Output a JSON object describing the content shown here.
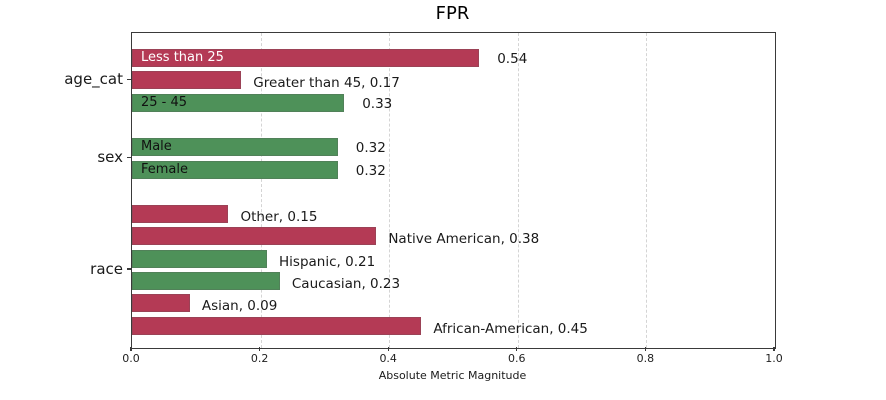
{
  "chart_data": {
    "type": "bar",
    "orientation": "horizontal",
    "title": "FPR",
    "xlabel": "Absolute Metric Magnitude",
    "xlim": [
      0.0,
      1.0
    ],
    "xticks": [
      0.0,
      0.2,
      0.4,
      0.6,
      0.8,
      1.0
    ],
    "grid": "vertical-dashed",
    "legend": "none",
    "colors": {
      "crimson": "#b43a55",
      "green": "#4e9159",
      "grid": "#d4d4d4",
      "spine": "#3a3a3a",
      "inside_label_on_crimson": "#ffffff",
      "inside_label_on_green": "#111111"
    },
    "groups": [
      {
        "label": "age_cat",
        "bars": [
          {
            "label": "Less than 25",
            "value": 0.54,
            "color": "crimson",
            "label_position": "inside"
          },
          {
            "label": "Greater than 45",
            "value": 0.17,
            "color": "crimson",
            "label_position": "outside"
          },
          {
            "label": "25 - 45",
            "value": 0.33,
            "color": "green",
            "label_position": "inside"
          }
        ]
      },
      {
        "label": "sex",
        "bars": [
          {
            "label": "Male",
            "value": 0.32,
            "color": "green",
            "label_position": "inside"
          },
          {
            "label": "Female",
            "value": 0.32,
            "color": "green",
            "label_position": "inside"
          }
        ]
      },
      {
        "label": "race",
        "bars": [
          {
            "label": "Other",
            "value": 0.15,
            "color": "crimson",
            "label_position": "outside"
          },
          {
            "label": "Native American",
            "value": 0.38,
            "color": "crimson",
            "label_position": "outside"
          },
          {
            "label": "Hispanic",
            "value": 0.21,
            "color": "green",
            "label_position": "outside"
          },
          {
            "label": "Caucasian",
            "value": 0.23,
            "color": "green",
            "label_position": "outside"
          },
          {
            "label": "Asian",
            "value": 0.09,
            "color": "crimson",
            "label_position": "outside"
          },
          {
            "label": "African-American",
            "value": 0.45,
            "color": "crimson",
            "label_position": "outside"
          }
        ]
      }
    ]
  }
}
